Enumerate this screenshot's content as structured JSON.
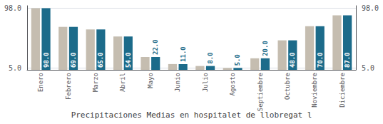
{
  "chart_data": {
    "type": "bar",
    "title": "Precipitaciones Medias en hospitalet de llobregat l",
    "categories": [
      "Enero",
      "Febrero",
      "Marzo",
      "Abril",
      "Mayo",
      "Junio",
      "Julio",
      "Agosto",
      "Septiembre",
      "Octubre",
      "Noviembre",
      "Diciembre"
    ],
    "series": [
      {
        "color": "#c5bdb0",
        "values": [
          98.0,
          69.0,
          65.0,
          54.0,
          22.0,
          11.0,
          8.0,
          5.0,
          20.0,
          48.0,
          70.0,
          87.0
        ]
      },
      {
        "color": "#1c6b8a",
        "values": [
          98.0,
          69.0,
          65.0,
          54.0,
          22.0,
          11.0,
          8.0,
          5.0,
          20.0,
          48.0,
          70.0,
          87.0
        ],
        "data_labels": true,
        "value_labels": [
          "98.0",
          "69.0",
          "65.0",
          "54.0",
          "22.0",
          "11.0",
          "8.0",
          "5.0",
          "20.0",
          "48.0",
          "70.0",
          "87.0"
        ]
      }
    ],
    "ylim": [
      2.0,
      102.0
    ],
    "yticks": [
      {
        "value": 5.0,
        "label": "5.0"
      },
      {
        "value": 98.0,
        "label": "98.0"
      }
    ],
    "y2lim": [
      2.0,
      102.0
    ],
    "y2ticks": [
      {
        "value": 5.0,
        "label": "5.0"
      },
      {
        "value": 98.0,
        "label": "98.0"
      }
    ],
    "grid": true
  }
}
